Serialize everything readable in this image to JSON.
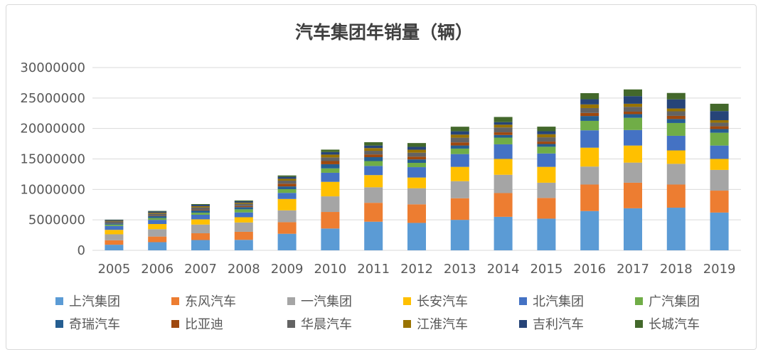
{
  "chart_data": {
    "type": "bar",
    "stacked": true,
    "title": "汽车集团年销量（辆）",
    "xlabel": "",
    "ylabel": "",
    "ylim": [
      0,
      30000000
    ],
    "yticks": [
      "0",
      "5000000",
      "10000000",
      "15000000",
      "20000000",
      "25000000",
      "30000000"
    ],
    "grid": true,
    "legend_position": "bottom",
    "categories": [
      "2005",
      "2006",
      "2007",
      "2008",
      "2009",
      "2010",
      "2011",
      "2012",
      "2013",
      "2014",
      "2015",
      "2016",
      "2017",
      "2018",
      "2019"
    ],
    "series": [
      {
        "name": "上汽集团",
        "color": "#5b9bd5",
        "values": [
          920000,
          1340000,
          1690000,
          1720000,
          2720000,
          3580000,
          4700000,
          4500000,
          5000000,
          5500000,
          5200000,
          6450000,
          6900000,
          7000000,
          6200000
        ]
      },
      {
        "name": "东风汽车",
        "color": "#ed7d31",
        "values": [
          730000,
          920000,
          1110000,
          1320000,
          1900000,
          2720000,
          3100000,
          3050000,
          3550000,
          3900000,
          3400000,
          4350000,
          4200000,
          3800000,
          3600000
        ]
      },
      {
        "name": "一汽集团",
        "color": "#a5a5a5",
        "values": [
          980000,
          1210000,
          1430000,
          1530000,
          1940000,
          2560000,
          2550000,
          2640000,
          2800000,
          3000000,
          2500000,
          2950000,
          3300000,
          3400000,
          3400000
        ]
      },
      {
        "name": "长安汽车",
        "color": "#ffc000",
        "values": [
          730000,
          850000,
          860000,
          860000,
          1870000,
          2380000,
          2000000,
          1760000,
          2350000,
          2600000,
          2600000,
          3100000,
          2800000,
          2200000,
          1800000
        ]
      },
      {
        "name": "北汽集团",
        "color": "#4472c4",
        "values": [
          640000,
          680000,
          750000,
          790000,
          1000000,
          1490000,
          1500000,
          1700000,
          2100000,
          2400000,
          2200000,
          2850000,
          2550000,
          2400000,
          2200000
        ]
      },
      {
        "name": "广汽集团",
        "color": "#70ad47",
        "values": [
          220000,
          300000,
          330000,
          510000,
          610000,
          720000,
          800000,
          710000,
          900000,
          1100000,
          1100000,
          1550000,
          2000000,
          2100000,
          2100000
        ]
      },
      {
        "name": "奇瑞汽车",
        "color": "#255e91",
        "values": [
          190000,
          310000,
          380000,
          360000,
          450000,
          680000,
          640000,
          560000,
          510000,
          430000,
          450000,
          800000,
          600000,
          650000,
          600000
        ]
      },
      {
        "name": "比亚迪",
        "color": "#9e480e",
        "values": [
          30000,
          60000,
          100000,
          170000,
          450000,
          520000,
          450000,
          460000,
          510000,
          440000,
          400000,
          500000,
          410000,
          520000,
          460000
        ]
      },
      {
        "name": "华晨汽车",
        "color": "#636363",
        "values": [
          300000,
          350000,
          400000,
          400000,
          500000,
          600000,
          600000,
          650000,
          770000,
          800000,
          700000,
          800000,
          800000,
          750000,
          600000
        ]
      },
      {
        "name": "江淮汽车",
        "color": "#997300",
        "values": [
          100000,
          150000,
          200000,
          170000,
          300000,
          460000,
          440000,
          480000,
          500000,
          450000,
          500000,
          600000,
          500000,
          460000,
          400000
        ]
      },
      {
        "name": "吉利汽车",
        "color": "#264478",
        "values": [
          150000,
          200000,
          220000,
          220000,
          330000,
          420000,
          420000,
          480000,
          550000,
          420000,
          500000,
          850000,
          1250000,
          1500000,
          1500000
        ]
      },
      {
        "name": "长城汽车",
        "color": "#43682b",
        "values": [
          50000,
          100000,
          120000,
          130000,
          220000,
          400000,
          550000,
          620000,
          750000,
          850000,
          750000,
          1000000,
          1100000,
          1050000,
          1200000
        ]
      }
    ]
  }
}
